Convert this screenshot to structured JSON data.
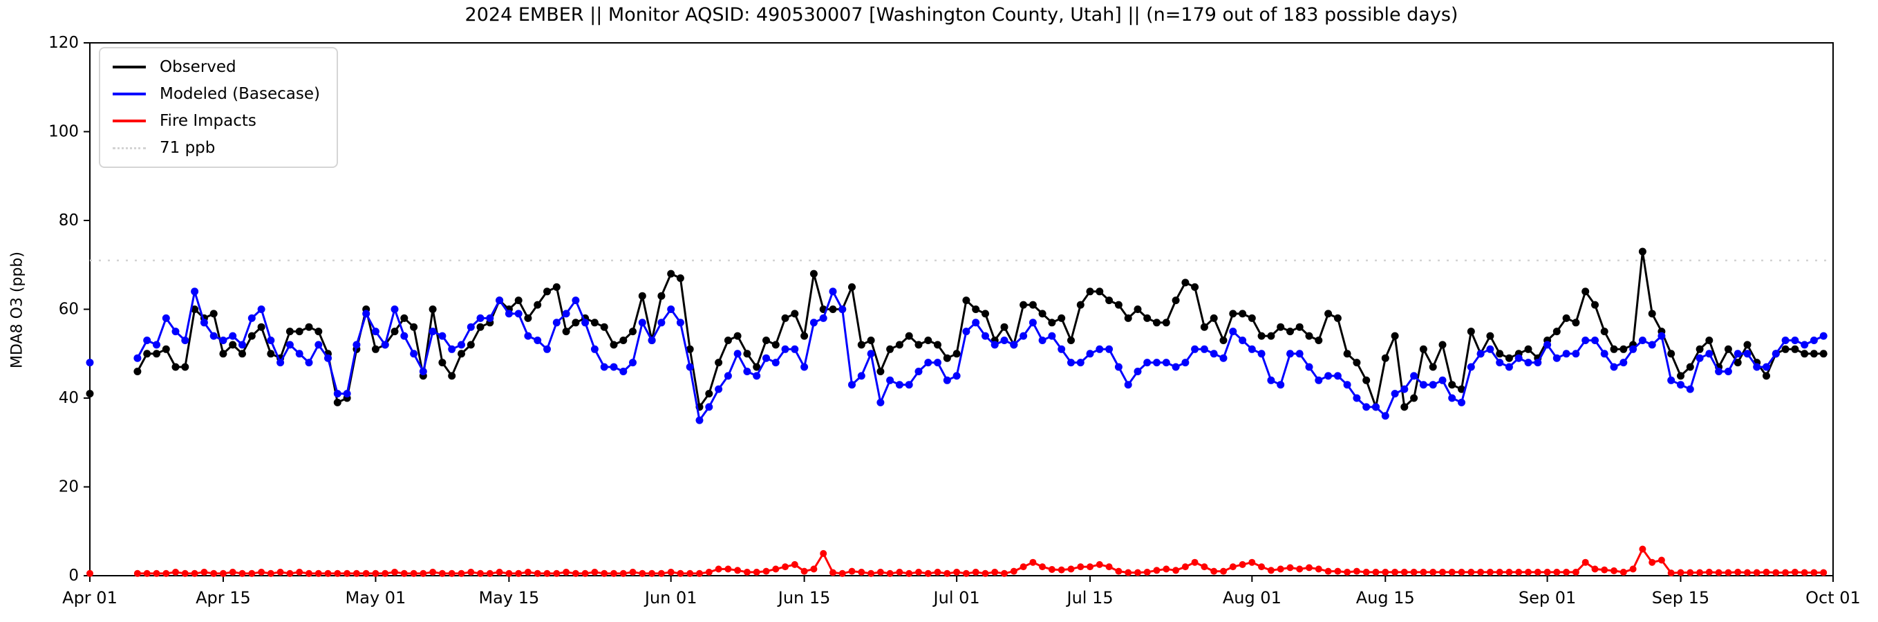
{
  "chart_data": {
    "type": "line",
    "title": "2024 EMBER || Monitor AQSID: 490530007 [Washington County, Utah] || (n=179 out of 183 possible days)",
    "ylabel": "MDA8 O3 (ppb)",
    "ylim": [
      0,
      120
    ],
    "yticks": [
      0,
      20,
      40,
      60,
      80,
      100,
      120
    ],
    "n_days": 183,
    "x_start": "Apr 01",
    "x_end": "Oct 01",
    "xticks": [
      {
        "label": "Apr 01",
        "day": 0
      },
      {
        "label": "Apr 15",
        "day": 14
      },
      {
        "label": "May 01",
        "day": 30
      },
      {
        "label": "May 15",
        "day": 44
      },
      {
        "label": "Jun 01",
        "day": 61
      },
      {
        "label": "Jun 15",
        "day": 75
      },
      {
        "label": "Jul 01",
        "day": 91
      },
      {
        "label": "Jul 15",
        "day": 105
      },
      {
        "label": "Aug 01",
        "day": 122
      },
      {
        "label": "Aug 15",
        "day": 136
      },
      {
        "label": "Sep 01",
        "day": 153
      },
      {
        "label": "Sep 15",
        "day": 167
      },
      {
        "label": "Oct 01",
        "day": 183
      }
    ],
    "threshold": {
      "label": "71 ppb",
      "value": 71,
      "color": "#d3d3d3"
    },
    "legend_position": "upper-left",
    "grid": false,
    "series": [
      {
        "name": "Observed",
        "color": "#000000",
        "values": [
          41,
          null,
          null,
          null,
          null,
          46,
          50,
          50,
          51,
          47,
          47,
          60,
          58,
          59,
          50,
          52,
          50,
          54,
          56,
          50,
          49,
          55,
          55,
          56,
          55,
          50,
          39,
          40,
          51,
          60,
          51,
          52,
          55,
          58,
          56,
          45,
          60,
          48,
          45,
          50,
          52,
          56,
          57,
          62,
          60,
          62,
          58,
          61,
          64,
          65,
          55,
          57,
          58,
          57,
          56,
          52,
          53,
          55,
          63,
          53,
          63,
          68,
          67,
          51,
          38,
          41,
          48,
          53,
          54,
          50,
          47,
          53,
          52,
          58,
          59,
          54,
          68,
          60,
          60,
          60,
          65,
          52,
          53,
          46,
          51,
          52,
          54,
          52,
          53,
          52,
          49,
          50,
          62,
          60,
          59,
          53,
          56,
          52,
          61,
          61,
          59,
          57,
          58,
          53,
          61,
          64,
          64,
          62,
          61,
          58,
          60,
          58,
          57,
          57,
          62,
          66,
          65,
          56,
          58,
          53,
          59,
          59,
          58,
          54,
          54,
          56,
          55,
          56,
          54,
          53,
          59,
          58,
          50,
          48,
          44,
          38,
          49,
          54,
          38,
          40,
          51,
          47,
          52,
          43,
          42,
          55,
          50,
          54,
          50,
          49,
          50,
          51,
          49,
          53,
          55,
          58,
          57,
          64,
          61,
          55,
          51,
          51,
          52,
          73,
          59,
          55,
          50,
          45,
          47,
          51,
          53,
          47,
          51,
          48,
          52,
          48,
          45,
          50,
          51,
          51,
          50,
          50,
          50
        ]
      },
      {
        "name": "Modeled (Basecase)",
        "color": "#0000ff",
        "values": [
          48,
          null,
          null,
          null,
          null,
          49,
          53,
          52,
          58,
          55,
          53,
          64,
          57,
          54,
          53,
          54,
          52,
          58,
          60,
          53,
          48,
          52,
          50,
          48,
          52,
          49,
          41,
          41,
          52,
          59,
          55,
          52,
          60,
          54,
          50,
          46,
          55,
          54,
          51,
          52,
          56,
          58,
          58,
          62,
          59,
          59,
          54,
          53,
          51,
          57,
          59,
          62,
          57,
          51,
          47,
          47,
          46,
          48,
          57,
          53,
          57,
          60,
          57,
          47,
          35,
          38,
          42,
          45,
          50,
          46,
          45,
          49,
          48,
          51,
          51,
          47,
          57,
          58,
          64,
          60,
          43,
          45,
          50,
          39,
          44,
          43,
          43,
          46,
          48,
          48,
          44,
          45,
          55,
          57,
          54,
          52,
          53,
          52,
          54,
          57,
          53,
          54,
          51,
          48,
          48,
          50,
          51,
          51,
          47,
          43,
          46,
          48,
          48,
          48,
          47,
          48,
          51,
          51,
          50,
          49,
          55,
          53,
          51,
          50,
          44,
          43,
          50,
          50,
          47,
          44,
          45,
          45,
          43,
          40,
          38,
          38,
          36,
          41,
          42,
          45,
          43,
          43,
          44,
          40,
          39,
          47,
          50,
          51,
          48,
          47,
          49,
          48,
          48,
          52,
          49,
          50,
          50,
          53,
          53,
          50,
          47,
          48,
          51,
          53,
          52,
          54,
          44,
          43,
          42,
          49,
          50,
          46,
          46,
          50,
          50,
          47,
          47,
          50,
          53,
          53,
          52,
          53,
          54
        ]
      },
      {
        "name": "Fire Impacts",
        "color": "#ff0000",
        "values": [
          0.5,
          null,
          null,
          null,
          null,
          0.5,
          0.5,
          0.5,
          0.5,
          0.8,
          0.5,
          0.5,
          0.8,
          0.5,
          0.5,
          0.8,
          0.5,
          0.5,
          0.8,
          0.5,
          0.8,
          0.5,
          0.8,
          0.5,
          0.5,
          0.5,
          0.5,
          0.5,
          0.5,
          0.5,
          0.5,
          0.5,
          0.8,
          0.5,
          0.5,
          0.5,
          0.8,
          0.5,
          0.5,
          0.5,
          0.8,
          0.5,
          0.5,
          0.8,
          0.5,
          0.5,
          0.8,
          0.5,
          0.5,
          0.5,
          0.8,
          0.5,
          0.5,
          0.8,
          0.5,
          0.5,
          0.5,
          0.8,
          0.5,
          0.5,
          0.5,
          0.8,
          0.5,
          0.5,
          0.5,
          0.8,
          1.5,
          1.5,
          1.2,
          0.8,
          0.8,
          1,
          1.5,
          2,
          2.5,
          1,
          1.5,
          5,
          0.7,
          0.5,
          1,
          0.8,
          0.5,
          0.8,
          0.5,
          0.8,
          0.5,
          0.8,
          0.5,
          0.8,
          0.5,
          0.8,
          0.5,
          0.8,
          0.5,
          0.8,
          0.5,
          1,
          2,
          3,
          2,
          1.4,
          1.3,
          1.5,
          2,
          2,
          2.5,
          2,
          1,
          0.7,
          0.7,
          0.8,
          1.2,
          1.5,
          1.2,
          2,
          3,
          2,
          1,
          1,
          2,
          2.5,
          3,
          2,
          1.2,
          1.5,
          1.8,
          1.5,
          1.8,
          1.5,
          1,
          1,
          0.8,
          1,
          0.8,
          0.8,
          0.8,
          0.8,
          0.8,
          0.8,
          0.8,
          0.8,
          0.8,
          0.8,
          0.8,
          0.8,
          0.8,
          0.8,
          0.8,
          0.8,
          0.8,
          0.8,
          0.8,
          0.8,
          0.8,
          0.8,
          0.8,
          3,
          1.5,
          1.3,
          1.1,
          0.8,
          1.5,
          6,
          3,
          3.5,
          0.6,
          0.7,
          0.7,
          0.7,
          0.8,
          0.7,
          0.7,
          0.8,
          0.7,
          0.7,
          0.8,
          0.7,
          0.7,
          0.8,
          0.7,
          0.7,
          0.7
        ]
      }
    ]
  }
}
